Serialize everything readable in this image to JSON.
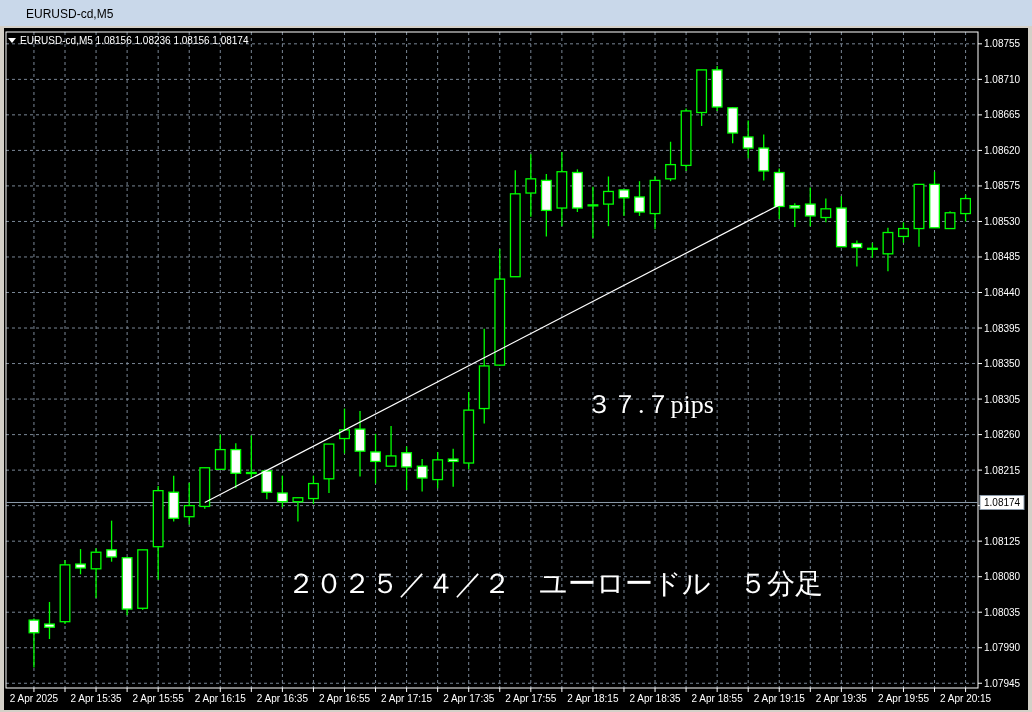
{
  "chart_data": {
    "type": "candlestick",
    "title": "EURUSD-cd,M5",
    "subtitle": "EURUSD-cd,M5  1.08156 1.08236 1.08156 1.08174",
    "x": [
      "2025-04-02T15:15",
      "2025-04-02T15:20",
      "2025-04-02T15:25",
      "2025-04-02T15:30",
      "2025-04-02T15:35",
      "2025-04-02T15:40",
      "2025-04-02T15:45",
      "2025-04-02T15:50",
      "2025-04-02T15:55",
      "2025-04-02T16:00",
      "2025-04-02T16:05",
      "2025-04-02T16:10",
      "2025-04-02T16:15",
      "2025-04-02T16:20",
      "2025-04-02T16:25",
      "2025-04-02T16:30",
      "2025-04-02T16:35",
      "2025-04-02T16:40",
      "2025-04-02T16:45",
      "2025-04-02T16:50",
      "2025-04-02T16:55",
      "2025-04-02T17:00",
      "2025-04-02T17:05",
      "2025-04-02T17:10",
      "2025-04-02T17:15",
      "2025-04-02T17:20",
      "2025-04-02T17:25",
      "2025-04-02T17:30",
      "2025-04-02T17:35",
      "2025-04-02T17:40",
      "2025-04-02T17:45",
      "2025-04-02T17:50",
      "2025-04-02T17:55",
      "2025-04-02T18:00",
      "2025-04-02T18:05",
      "2025-04-02T18:10",
      "2025-04-02T18:15",
      "2025-04-02T18:20",
      "2025-04-02T18:25",
      "2025-04-02T18:30",
      "2025-04-02T18:35",
      "2025-04-02T18:40",
      "2025-04-02T18:45",
      "2025-04-02T18:50",
      "2025-04-02T18:55",
      "2025-04-02T19:00",
      "2025-04-02T19:05",
      "2025-04-02T19:10",
      "2025-04-02T19:15",
      "2025-04-02T19:20",
      "2025-04-02T19:25",
      "2025-04-02T19:30",
      "2025-04-02T19:35",
      "2025-04-02T19:40",
      "2025-04-02T19:45",
      "2025-04-02T19:50",
      "2025-04-02T19:55",
      "2025-04-02T20:00",
      "2025-04-02T20:05",
      "2025-04-02T20:10",
      "2025-04-02T20:15"
    ],
    "ohlc": [
      [
        1.08025,
        1.08027,
        1.07965,
        1.08009
      ],
      [
        1.0802,
        1.08048,
        1.08001,
        1.08016
      ],
      [
        1.08023,
        1.08101,
        1.0802,
        1.08095
      ],
      [
        1.08096,
        1.08115,
        1.08083,
        1.08091
      ],
      [
        1.0809,
        1.08116,
        1.08053,
        1.08111
      ],
      [
        1.08114,
        1.08151,
        1.08099,
        1.08105
      ],
      [
        1.08104,
        1.08105,
        1.08031,
        1.08039
      ],
      [
        1.0804,
        1.08114,
        1.08038,
        1.08114
      ],
      [
        1.08118,
        1.08195,
        1.08076,
        1.08189
      ],
      [
        1.08187,
        1.08208,
        1.0815,
        1.08154
      ],
      [
        1.08156,
        1.08199,
        1.08146,
        1.0817
      ],
      [
        1.08169,
        1.08218,
        1.08166,
        1.08218
      ],
      [
        1.08216,
        1.0826,
        1.08215,
        1.08241
      ],
      [
        1.08241,
        1.08249,
        1.08192,
        1.08211
      ],
      [
        1.08212,
        1.08259,
        1.08205,
        1.08212
      ],
      [
        1.08214,
        1.08214,
        1.08178,
        1.08187
      ],
      [
        1.08186,
        1.08208,
        1.08168,
        1.08175
      ],
      [
        1.08175,
        1.0818,
        1.0815,
        1.0818
      ],
      [
        1.08179,
        1.08208,
        1.08172,
        1.08198
      ],
      [
        1.08204,
        1.08248,
        1.08186,
        1.08248
      ],
      [
        1.08255,
        1.08293,
        1.08236,
        1.08266
      ],
      [
        1.08267,
        1.0829,
        1.08207,
        1.08239
      ],
      [
        1.08238,
        1.08261,
        1.08198,
        1.08226
      ],
      [
        1.0822,
        1.08271,
        1.0822,
        1.08233
      ],
      [
        1.08237,
        1.08245,
        1.0819,
        1.08219
      ],
      [
        1.0822,
        1.08229,
        1.08188,
        1.08205
      ],
      [
        1.08203,
        1.08238,
        1.08192,
        1.08228
      ],
      [
        1.08229,
        1.08242,
        1.08194,
        1.08226
      ],
      [
        1.08224,
        1.08314,
        1.08216,
        1.08291
      ],
      [
        1.08293,
        1.08394,
        1.08274,
        1.08347
      ],
      [
        1.08348,
        1.08495,
        1.08347,
        1.08457
      ],
      [
        1.0846,
        1.08595,
        1.0846,
        1.08565
      ],
      [
        1.08566,
        1.08615,
        1.08536,
        1.08584
      ],
      [
        1.08582,
        1.0859,
        1.08511,
        1.08544
      ],
      [
        1.08547,
        1.08618,
        1.08524,
        1.08593
      ],
      [
        1.08592,
        1.08596,
        1.08542,
        1.08547
      ],
      [
        1.08551,
        1.08574,
        1.08509,
        1.08551
      ],
      [
        1.08552,
        1.08587,
        1.08524,
        1.08568
      ],
      [
        1.0857,
        1.0857,
        1.08537,
        1.0856
      ],
      [
        1.08561,
        1.08581,
        1.08537,
        1.08542
      ],
      [
        1.0854,
        1.08587,
        1.0852,
        1.08582
      ],
      [
        1.08584,
        1.08631,
        1.08581,
        1.08602
      ],
      [
        1.08601,
        1.08673,
        1.08594,
        1.0867
      ],
      [
        1.08668,
        1.08722,
        1.08651,
        1.08722
      ],
      [
        1.08722,
        1.08727,
        1.0867,
        1.08675
      ],
      [
        1.08674,
        1.08675,
        1.08629,
        1.08642
      ],
      [
        1.08637,
        1.08658,
        1.0861,
        1.08623
      ],
      [
        1.08623,
        1.0864,
        1.08582,
        1.08594
      ],
      [
        1.08592,
        1.08597,
        1.08533,
        1.08549
      ],
      [
        1.0855,
        1.08553,
        1.08523,
        1.08547
      ],
      [
        1.08552,
        1.08573,
        1.08524,
        1.08537
      ],
      [
        1.08535,
        1.08559,
        1.08529,
        1.08546
      ],
      [
        1.08547,
        1.08562,
        1.08498,
        1.08498
      ],
      [
        1.08502,
        1.08506,
        1.08473,
        1.08497
      ],
      [
        1.08496,
        1.08503,
        1.08484,
        1.08496
      ],
      [
        1.08489,
        1.08522,
        1.08467,
        1.08516
      ],
      [
        1.08511,
        1.08529,
        1.08503,
        1.08521
      ],
      [
        1.08521,
        1.08577,
        1.08498,
        1.08577
      ],
      [
        1.08577,
        1.08593,
        1.08522,
        1.08522
      ],
      [
        1.08521,
        1.08543,
        1.08521,
        1.08541
      ],
      [
        1.0854,
        1.08564,
        1.0853,
        1.08559
      ]
    ],
    "color": "#00ff00",
    "colors": [
      "#ffffff",
      "#ffffff",
      "#000000",
      "#ffffff",
      "#000000",
      "#ffffff",
      "#ffffff",
      "#000000",
      "#000000",
      "#ffffff",
      "#000000",
      "#000000",
      "#000000",
      "#ffffff",
      "#ffffff",
      "#ffffff",
      "#ffffff",
      "#000000",
      "#000000",
      "#000000",
      "#000000",
      "#ffffff",
      "#ffffff",
      "#000000",
      "#ffffff",
      "#ffffff",
      "#000000",
      "#ffffff",
      "#000000",
      "#000000",
      "#000000",
      "#000000",
      "#000000",
      "#ffffff",
      "#000000",
      "#ffffff",
      "#ffffff",
      "#000000",
      "#ffffff",
      "#ffffff",
      "#000000",
      "#000000",
      "#000000",
      "#000000",
      "#ffffff",
      "#ffffff",
      "#ffffff",
      "#ffffff",
      "#ffffff",
      "#ffffff",
      "#ffffff",
      "#000000",
      "#ffffff",
      "#ffffff",
      "#ffffff",
      "#000000",
      "#000000",
      "#000000",
      "#ffffff",
      "#000000",
      "#000000"
    ],
    "series": [
      {
        "type": "line",
        "x": [
          "2025-04-02T16:10",
          "2025-04-02T19:15"
        ],
        "values": [
          1.08174,
          1.08551
        ],
        "color": "#ffffff"
      }
    ],
    "xlim": [
      "2025-04-02T15:06",
      "2025-04-02T20:19"
    ],
    "xticks": [
      {
        "value": "2025-04-02T15:15",
        "label": "2 Apr 2025"
      },
      {
        "value": "2025-04-02T15:25",
        "label": null
      },
      {
        "value": "2025-04-02T15:35",
        "label": "2 Apr 15:35"
      },
      {
        "value": "2025-04-02T15:45",
        "label": null
      },
      {
        "value": "2025-04-02T15:55",
        "label": "2 Apr 15:55"
      },
      {
        "value": "2025-04-02T16:05",
        "label": null
      },
      {
        "value": "2025-04-02T16:15",
        "label": "2 Apr 16:15"
      },
      {
        "value": "2025-04-02T16:25",
        "label": null
      },
      {
        "value": "2025-04-02T16:35",
        "label": "2 Apr 16:35"
      },
      {
        "value": "2025-04-02T16:45",
        "label": null
      },
      {
        "value": "2025-04-02T16:55",
        "label": "2 Apr 16:55"
      },
      {
        "value": "2025-04-02T17:05",
        "label": null
      },
      {
        "value": "2025-04-02T17:15",
        "label": "2 Apr 17:15"
      },
      {
        "value": "2025-04-02T17:25",
        "label": null
      },
      {
        "value": "2025-04-02T17:35",
        "label": "2 Apr 17:35"
      },
      {
        "value": "2025-04-02T17:45",
        "label": null
      },
      {
        "value": "2025-04-02T17:55",
        "label": "2 Apr 17:55"
      },
      {
        "value": "2025-04-02T18:05",
        "label": null
      },
      {
        "value": "2025-04-02T18:15",
        "label": "2 Apr 18:15"
      },
      {
        "value": "2025-04-02T18:25",
        "label": null
      },
      {
        "value": "2025-04-02T18:35",
        "label": "2 Apr 18:35"
      },
      {
        "value": "2025-04-02T18:45",
        "label": null
      },
      {
        "value": "2025-04-02T18:55",
        "label": "2 Apr 18:55"
      },
      {
        "value": "2025-04-02T19:05",
        "label": null
      },
      {
        "value": "2025-04-02T19:15",
        "label": "2 Apr 19:15"
      },
      {
        "value": "2025-04-02T19:25",
        "label": null
      },
      {
        "value": "2025-04-02T19:35",
        "label": "2 Apr 19:35"
      },
      {
        "value": "2025-04-02T19:45",
        "label": null
      },
      {
        "value": "2025-04-02T19:55",
        "label": "2 Apr 19:55"
      },
      {
        "value": "2025-04-02T20:05",
        "label": null
      },
      {
        "value": "2025-04-02T20:15",
        "label": "2 Apr 20:15"
      }
    ],
    "ylim": [
      1.07939,
      1.0877
    ],
    "yticks": [
      1.07945,
      {
        "value": 1.0799,
        "label": "1.07990"
      },
      1.08035,
      {
        "value": 1.0808,
        "label": "1.08080"
      },
      1.08125,
      {
        "value": 1.0817,
        "label": null
      },
      1.08215,
      {
        "value": 1.0826,
        "label": "1.08260"
      },
      1.08305,
      {
        "value": 1.0835,
        "label": "1.08350"
      },
      1.08395,
      {
        "value": 1.0844,
        "label": "1.08440"
      },
      1.08485,
      {
        "value": 1.0853,
        "label": "1.08530"
      },
      1.08575,
      {
        "value": 1.0862,
        "label": "1.08620"
      },
      1.08665,
      {
        "value": 1.0871,
        "label": "1.08710"
      },
      1.08755
    ],
    "grid": true,
    "ref_lines": [
      {
        "axis": "y",
        "value": 1.08174,
        "label": "1.08174",
        "color": "#8c9bab"
      }
    ],
    "annotations": [
      "３７.７pips",
      "２０２５／４／２　ユーロードル　５分足"
    ]
  }
}
